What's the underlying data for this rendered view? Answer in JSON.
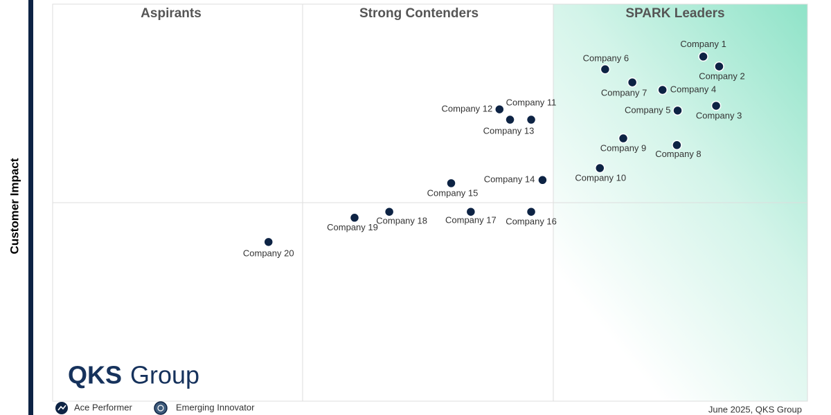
{
  "chart_data": {
    "type": "scatter",
    "y_label": "Customer Impact",
    "quadrants": [
      "Aspirants",
      "Strong Contenders",
      "SPARK Leaders"
    ],
    "xlim": [
      0,
      100
    ],
    "ylim": [
      0,
      100
    ],
    "color": "#0d2344",
    "points": [
      {
        "name": "Company 1",
        "x": 86.2,
        "y": 86.8
      },
      {
        "name": "Company 2",
        "x": 88.3,
        "y": 84.3
      },
      {
        "name": "Company 3",
        "x": 87.9,
        "y": 74.4
      },
      {
        "name": "Company 4",
        "x": 80.8,
        "y": 78.4
      },
      {
        "name": "Company 5",
        "x": 82.8,
        "y": 73.2
      },
      {
        "name": "Company 6",
        "x": 73.2,
        "y": 83.6
      },
      {
        "name": "Company 7",
        "x": 76.8,
        "y": 80.3
      },
      {
        "name": "Company 8",
        "x": 82.7,
        "y": 64.5
      },
      {
        "name": "Company 9",
        "x": 75.6,
        "y": 66.2
      },
      {
        "name": "Company 10",
        "x": 72.5,
        "y": 58.7
      },
      {
        "name": "Company 11",
        "x": 63.4,
        "y": 70.9
      },
      {
        "name": "Company 12",
        "x": 59.2,
        "y": 73.5
      },
      {
        "name": "Company 13",
        "x": 60.6,
        "y": 70.9
      },
      {
        "name": "Company 14",
        "x": 64.9,
        "y": 55.7
      },
      {
        "name": "Company 15",
        "x": 52.8,
        "y": 54.9
      },
      {
        "name": "Company 16",
        "x": 63.4,
        "y": 47.7
      },
      {
        "name": "Company 17",
        "x": 55.4,
        "y": 47.7
      },
      {
        "name": "Company 18",
        "x": 44.6,
        "y": 47.7
      },
      {
        "name": "Company 19",
        "x": 40.0,
        "y": 46.2
      },
      {
        "name": "Company 20",
        "x": 28.6,
        "y": 40.1
      }
    ],
    "legend": [
      "Ace Performer",
      "Emerging Innovator"
    ],
    "logo": {
      "bold": "QKS",
      "light": "Group"
    },
    "footnote": "June 2025, QKS Group"
  }
}
